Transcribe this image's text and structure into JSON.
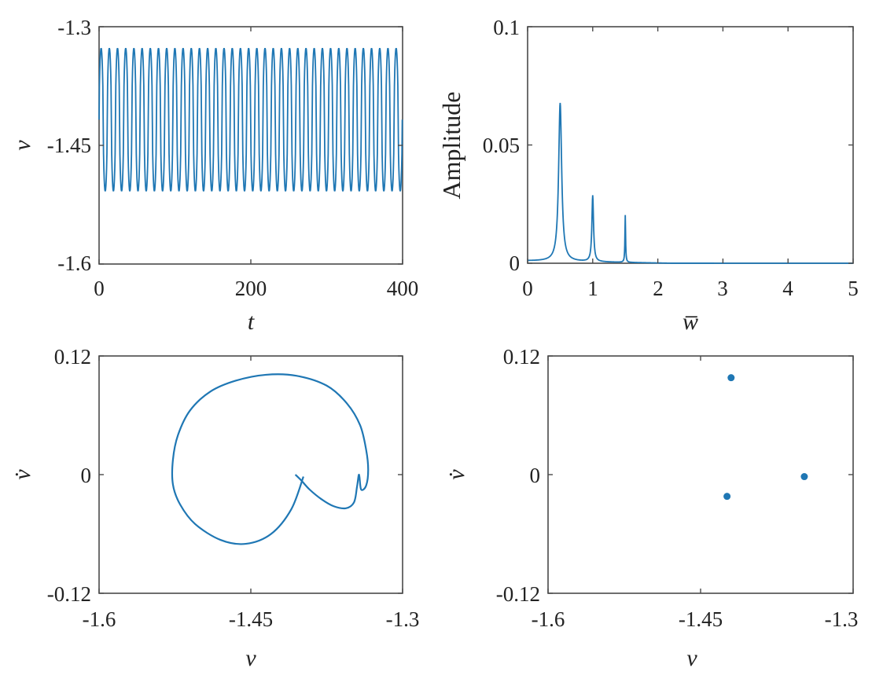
{
  "chart_data": [
    {
      "type": "line",
      "title": "",
      "xlabel": "t",
      "ylabel": "v",
      "xlim": [
        0,
        400
      ],
      "ylim": [
        -1.6,
        -1.3
      ],
      "xticks": [
        "0",
        "200",
        "400"
      ],
      "yticks": [
        "-1.3",
        "-1.45",
        "-1.6"
      ],
      "series": [
        {
          "type": "periodic",
          "period": 10.8,
          "min": -1.508,
          "max": -1.327,
          "samples_per_period": 24
        }
      ]
    },
    {
      "type": "line",
      "title": "",
      "xlabel": "w̅",
      "ylabel": "Amplitude",
      "xlim": [
        0,
        5
      ],
      "ylim": [
        0,
        0.1
      ],
      "xticks": [
        "0",
        "1",
        "2",
        "3",
        "4",
        "5"
      ],
      "yticks": [
        "0",
        "0.05",
        "0.1"
      ],
      "series": [
        {
          "peaks": [
            {
              "x": 0.5,
              "y": 0.068
            },
            {
              "x": 1.0,
              "y": 0.029
            },
            {
              "x": 1.5,
              "y": 0.021
            }
          ],
          "baseline": 0.001
        }
      ]
    },
    {
      "type": "line",
      "title": "",
      "xlabel": "v",
      "ylabel": "v̇",
      "xlim": [
        -1.6,
        -1.3
      ],
      "ylim": [
        -0.12,
        0.12
      ],
      "xticks": [
        "-1.6",
        "-1.45",
        "-1.3"
      ],
      "yticks": [
        "0.12",
        "0",
        "-0.12"
      ],
      "series": [
        {
          "x": [
            -1.398,
            -1.41,
            -1.43,
            -1.455,
            -1.48,
            -1.505,
            -1.52,
            -1.527,
            -1.527,
            -1.522,
            -1.51,
            -1.49,
            -1.465,
            -1.435,
            -1.405,
            -1.375,
            -1.355,
            -1.342,
            -1.336,
            -1.334,
            -1.336,
            -1.341,
            -1.343,
            -1.345,
            -1.348,
            -1.356,
            -1.368,
            -1.38,
            -1.392,
            -1.4,
            -1.406
          ],
          "y": [
            -0.002,
            -0.035,
            -0.06,
            -0.07,
            -0.066,
            -0.05,
            -0.03,
            -0.01,
            0.015,
            0.04,
            0.065,
            0.084,
            0.095,
            0.101,
            0.1,
            0.09,
            0.072,
            0.05,
            0.025,
            0.005,
            -0.011,
            -0.015,
            0.0,
            -0.012,
            -0.028,
            -0.034,
            -0.032,
            -0.025,
            -0.015,
            -0.006,
            0.0
          ]
        }
      ]
    },
    {
      "type": "scatter",
      "title": "",
      "xlabel": "v",
      "ylabel": "v̇",
      "xlim": [
        -1.6,
        -1.3
      ],
      "ylim": [
        -0.12,
        0.12
      ],
      "xticks": [
        "-1.6",
        "-1.45",
        "-1.3"
      ],
      "yticks": [
        "0.12",
        "0",
        "-0.12"
      ],
      "series": [
        {
          "x": [
            -1.42,
            -1.424,
            -1.348
          ],
          "y": [
            0.098,
            -0.022,
            -0.002
          ]
        }
      ]
    }
  ],
  "colors": {
    "line": "#1f77b4",
    "axis": "#4a4a4a",
    "background": "#ffffff"
  }
}
